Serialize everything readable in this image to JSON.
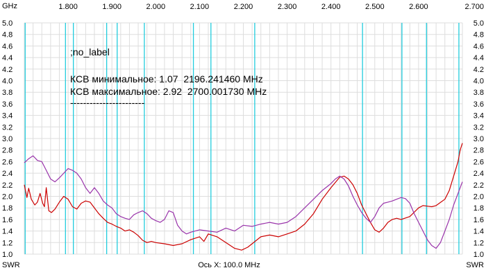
{
  "chart_data": {
    "type": "line",
    "xunit": "GHz",
    "yunit_left": "SWR",
    "yunit_right": "SWR",
    "xlabel": "Ось X: 100.0 MHz",
    "xlim": [
      1.7,
      2.7
    ],
    "ylim": [
      1.0,
      5.0
    ],
    "x_ticks": [
      "1.800",
      "1.900",
      "2.000",
      "2.100",
      "2.200",
      "2.300",
      "2.400",
      "2.500",
      "2.600",
      "2.700"
    ],
    "y_ticks": [
      "1.0",
      "1.2",
      "1.4",
      "1.6",
      "1.8",
      "2.0",
      "2.2",
      "2.4",
      "2.6",
      "2.8",
      "3.0",
      "3.2",
      "3.4",
      "3.6",
      "3.8",
      "4.0",
      "4.2",
      "4.4",
      "4.6",
      "4.8",
      "5.0"
    ],
    "markers_ghz": [
      1.702,
      1.794,
      1.812,
      1.888,
      1.912,
      1.974,
      2.086,
      2.126,
      2.226,
      2.472,
      2.562,
      2.618,
      2.692
    ],
    "annotations": [
      ";no_label",
      "КСВ минимальное: 1.07  2196.241460 MHz",
      "КСВ максимальное: 2.92  2700.001730 MHz",
      "-----------------------"
    ],
    "series": [
      {
        "color": "#cc0000",
        "x": [
          1.7,
          1.706,
          1.71,
          1.716,
          1.724,
          1.73,
          1.736,
          1.742,
          1.746,
          1.75,
          1.756,
          1.762,
          1.77,
          1.78,
          1.79,
          1.8,
          1.81,
          1.82,
          1.83,
          1.84,
          1.85,
          1.86,
          1.87,
          1.88,
          1.89,
          1.9,
          1.91,
          1.92,
          1.93,
          1.94,
          1.95,
          1.96,
          1.97,
          1.98,
          1.99,
          2.0,
          2.02,
          2.04,
          2.06,
          2.08,
          2.1,
          2.11,
          2.12,
          2.14,
          2.16,
          2.18,
          2.196,
          2.21,
          2.22,
          2.24,
          2.26,
          2.28,
          2.3,
          2.32,
          2.34,
          2.36,
          2.38,
          2.4,
          2.42,
          2.43,
          2.44,
          2.45,
          2.46,
          2.47,
          2.48,
          2.49,
          2.5,
          2.51,
          2.52,
          2.53,
          2.54,
          2.55,
          2.56,
          2.58,
          2.6,
          2.61,
          2.62,
          2.63,
          2.64,
          2.66,
          2.67,
          2.68,
          2.69,
          2.695,
          2.7
        ],
        "values": [
          2.2,
          1.98,
          2.14,
          1.95,
          1.85,
          1.9,
          2.05,
          1.88,
          1.82,
          2.15,
          1.75,
          1.72,
          1.78,
          1.9,
          2.0,
          1.95,
          1.82,
          1.78,
          1.88,
          1.92,
          1.9,
          1.8,
          1.7,
          1.62,
          1.55,
          1.52,
          1.48,
          1.45,
          1.4,
          1.42,
          1.38,
          1.32,
          1.24,
          1.2,
          1.22,
          1.2,
          1.18,
          1.15,
          1.18,
          1.25,
          1.3,
          1.22,
          1.35,
          1.3,
          1.2,
          1.1,
          1.07,
          1.12,
          1.18,
          1.3,
          1.33,
          1.3,
          1.35,
          1.4,
          1.52,
          1.7,
          1.95,
          2.15,
          2.33,
          2.35,
          2.3,
          2.2,
          2.05,
          1.85,
          1.7,
          1.55,
          1.42,
          1.38,
          1.45,
          1.55,
          1.6,
          1.62,
          1.6,
          1.65,
          1.8,
          1.84,
          1.83,
          1.82,
          1.84,
          1.95,
          2.1,
          2.35,
          2.6,
          2.8,
          2.92
        ]
      },
      {
        "color": "#9933aa",
        "x": [
          1.7,
          1.71,
          1.72,
          1.73,
          1.74,
          1.75,
          1.76,
          1.77,
          1.78,
          1.79,
          1.8,
          1.81,
          1.82,
          1.83,
          1.84,
          1.85,
          1.86,
          1.87,
          1.88,
          1.89,
          1.9,
          1.91,
          1.92,
          1.93,
          1.94,
          1.95,
          1.96,
          1.97,
          1.98,
          1.99,
          2.0,
          2.01,
          2.02,
          2.03,
          2.04,
          2.05,
          2.06,
          2.07,
          2.08,
          2.09,
          2.1,
          2.12,
          2.14,
          2.16,
          2.18,
          2.2,
          2.22,
          2.24,
          2.26,
          2.28,
          2.3,
          2.32,
          2.34,
          2.36,
          2.38,
          2.4,
          2.41,
          2.42,
          2.43,
          2.44,
          2.45,
          2.46,
          2.47,
          2.48,
          2.49,
          2.5,
          2.51,
          2.52,
          2.53,
          2.54,
          2.55,
          2.56,
          2.57,
          2.58,
          2.59,
          2.6,
          2.61,
          2.62,
          2.63,
          2.64,
          2.65,
          2.66,
          2.67,
          2.68,
          2.69,
          2.7
        ],
        "values": [
          2.58,
          2.65,
          2.7,
          2.62,
          2.6,
          2.45,
          2.3,
          2.25,
          2.32,
          2.4,
          2.48,
          2.45,
          2.4,
          2.3,
          2.15,
          2.05,
          2.15,
          2.05,
          1.92,
          1.85,
          1.8,
          1.7,
          1.65,
          1.62,
          1.6,
          1.68,
          1.72,
          1.75,
          1.7,
          1.62,
          1.58,
          1.55,
          1.6,
          1.75,
          1.72,
          1.5,
          1.4,
          1.35,
          1.38,
          1.4,
          1.42,
          1.4,
          1.38,
          1.45,
          1.4,
          1.5,
          1.48,
          1.52,
          1.55,
          1.52,
          1.55,
          1.65,
          1.8,
          1.95,
          2.1,
          2.22,
          2.3,
          2.35,
          2.3,
          2.18,
          2.0,
          1.85,
          1.72,
          1.62,
          1.55,
          1.65,
          1.8,
          1.88,
          1.9,
          1.92,
          1.95,
          1.98,
          1.96,
          1.88,
          1.7,
          1.55,
          1.4,
          1.25,
          1.15,
          1.1,
          1.2,
          1.4,
          1.6,
          1.85,
          2.05,
          2.25
        ]
      }
    ]
  },
  "colors": {
    "grid": "#dddddd",
    "marker": "#22ccdd",
    "axis_text": "#000000"
  }
}
